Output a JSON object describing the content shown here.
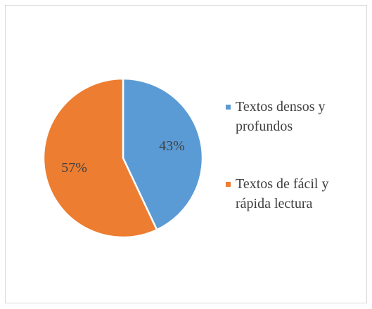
{
  "chart_data": {
    "type": "pie",
    "categories": [
      "Textos densos y profundos",
      "Textos de fácil y rápida lectura"
    ],
    "values": [
      43,
      57
    ],
    "value_labels": [
      "43%",
      "57%"
    ],
    "colors": [
      "#5b9bd5",
      "#ed7d31"
    ],
    "legend": "right"
  }
}
